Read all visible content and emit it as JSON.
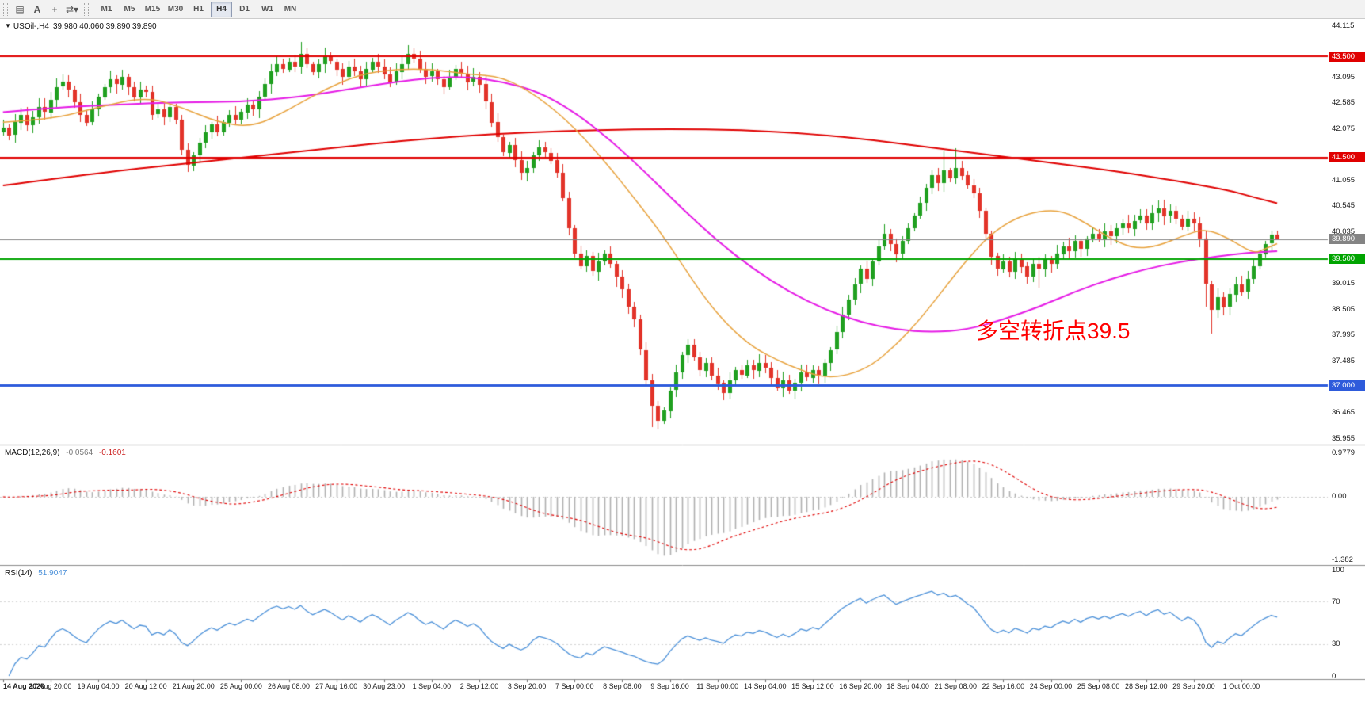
{
  "toolbar": {
    "tools": [
      {
        "name": "chart-window-icon",
        "glyph": "▤"
      },
      {
        "name": "text-annotation-icon",
        "glyph": "A"
      },
      {
        "name": "crosshair-icon",
        "glyph": "+"
      },
      {
        "name": "cycle-symbols-icon",
        "glyph": "⇄",
        "caret": "▾"
      }
    ],
    "timeframes": [
      "M1",
      "M5",
      "M15",
      "M30",
      "H1",
      "H4",
      "D1",
      "W1",
      "MN"
    ],
    "active_timeframe": "H4"
  },
  "main_header": {
    "collapse_icon": "▼",
    "title": "USOil-,H4",
    "ohlc": "39.980 40.060 39.890 39.890"
  },
  "macd_header": {
    "label": "MACD(12,26,9)",
    "value_main": "-0.0564",
    "value_signal": "-0.1601"
  },
  "rsi_header": {
    "label": "RSI(14)",
    "value": "51.9047"
  },
  "annotation": {
    "text": "多空转折点39.5",
    "color": "#ff0000"
  },
  "chart_data": {
    "type": "candlestick",
    "symbol": "USOil-",
    "timeframe": "H4",
    "title": "USOil-,H4",
    "ylim": [
      35.955,
      44.115
    ],
    "price_ticks": [
      "44.115",
      "43.095",
      "42.585",
      "42.075",
      "41.055",
      "40.545",
      "40.035",
      "39.015",
      "38.505",
      "37.995",
      "37.485",
      "36.465",
      "35.955"
    ],
    "up_color": "#20a020",
    "down_color": "#e23329",
    "open_first": 42.0,
    "closes": [
      42.1,
      41.95,
      42.2,
      42.35,
      42.15,
      42.3,
      42.5,
      42.4,
      42.65,
      42.9,
      43.0,
      42.85,
      42.6,
      42.35,
      42.2,
      42.45,
      42.7,
      42.9,
      43.05,
      42.95,
      43.1,
      42.9,
      42.7,
      42.85,
      42.8,
      42.35,
      42.45,
      42.3,
      42.5,
      42.25,
      41.65,
      41.35,
      41.55,
      41.8,
      42.0,
      42.15,
      42.0,
      42.2,
      42.35,
      42.25,
      42.4,
      42.55,
      42.45,
      42.7,
      42.95,
      43.2,
      43.35,
      43.25,
      43.4,
      43.3,
      43.55,
      43.35,
      43.2,
      43.35,
      43.5,
      43.4,
      43.25,
      43.1,
      43.3,
      43.2,
      43.05,
      43.25,
      43.4,
      43.3,
      43.15,
      43.0,
      43.2,
      43.35,
      43.55,
      43.45,
      43.25,
      43.1,
      43.2,
      43.05,
      42.9,
      43.1,
      43.25,
      43.15,
      43.0,
      43.1,
      42.95,
      42.6,
      42.2,
      41.9,
      41.6,
      41.75,
      41.45,
      41.2,
      41.3,
      41.55,
      41.7,
      41.6,
      41.45,
      41.2,
      40.7,
      40.1,
      39.6,
      39.35,
      39.55,
      39.25,
      39.45,
      39.6,
      39.4,
      39.15,
      38.9,
      38.55,
      38.3,
      37.7,
      37.1,
      36.6,
      36.3,
      36.5,
      36.9,
      37.25,
      37.6,
      37.8,
      37.55,
      37.3,
      37.45,
      37.2,
      37.05,
      36.85,
      37.1,
      37.3,
      37.2,
      37.4,
      37.3,
      37.45,
      37.35,
      37.15,
      36.95,
      37.1,
      36.9,
      37.05,
      37.25,
      37.15,
      37.3,
      37.2,
      37.45,
      37.7,
      38.05,
      38.4,
      38.7,
      39.0,
      39.3,
      39.1,
      39.45,
      39.75,
      40.0,
      39.8,
      39.6,
      39.85,
      40.1,
      40.35,
      40.6,
      40.9,
      41.15,
      41.0,
      41.25,
      41.1,
      41.3,
      41.15,
      40.95,
      40.8,
      40.45,
      40.0,
      39.55,
      39.3,
      39.45,
      39.25,
      39.5,
      39.35,
      39.15,
      39.4,
      39.3,
      39.5,
      39.4,
      39.6,
      39.75,
      39.65,
      39.85,
      39.7,
      39.9,
      40.0,
      39.9,
      40.05,
      39.95,
      40.1,
      40.2,
      40.1,
      40.25,
      40.35,
      40.2,
      40.4,
      40.5,
      40.35,
      40.45,
      40.3,
      40.15,
      40.3,
      40.2,
      39.9,
      39.0,
      38.5,
      38.75,
      38.55,
      38.8,
      39.0,
      38.85,
      39.1,
      39.35,
      39.6,
      39.8,
      39.98,
      39.89
    ],
    "wick_overrides": {
      "31": {
        "l": 41.22
      },
      "50": {
        "h": 43.78
      },
      "68": {
        "h": 43.72
      },
      "103": {
        "l": 38.95
      },
      "109": {
        "l": 36.18
      },
      "110": {
        "l": 36.12
      },
      "115": {
        "h": 37.92
      },
      "148": {
        "h": 40.18
      },
      "158": {
        "h": 41.62
      },
      "160": {
        "h": 41.68
      },
      "174": {
        "l": 38.93
      },
      "194": {
        "h": 40.65
      },
      "202": {
        "l": 38.55
      },
      "203": {
        "l": 38.02
      },
      "214": {
        "h": 40.06,
        "l": 39.87
      }
    },
    "right_shift_bars": 8,
    "levels": [
      {
        "price": 43.5,
        "label": "43.500",
        "color": "#e00000",
        "width": 2,
        "role": "resistance"
      },
      {
        "price": 41.5,
        "label": "41.500",
        "color": "#e00000",
        "width": 3,
        "role": "resistance"
      },
      {
        "price": 39.89,
        "label": "39.890",
        "color": "#848484",
        "width": 1,
        "role": "bid"
      },
      {
        "price": 39.5,
        "label": "39.500",
        "color": "#00a400",
        "width": 2,
        "role": "pivot"
      },
      {
        "price": 37.0,
        "label": "37.000",
        "color": "#2e5bdb",
        "width": 3,
        "role": "support"
      }
    ],
    "moving_averages": [
      {
        "name": "ma-slow",
        "color": "#e00000",
        "width": 2,
        "points": [
          [
            0,
            40.95
          ],
          [
            16,
            41.2
          ],
          [
            32,
            41.4
          ],
          [
            48,
            41.6
          ],
          [
            64,
            41.8
          ],
          [
            76,
            41.92
          ],
          [
            88,
            42.0
          ],
          [
            100,
            42.05
          ],
          [
            112,
            42.07
          ],
          [
            124,
            42.05
          ],
          [
            136,
            41.97
          ],
          [
            146,
            41.85
          ],
          [
            156,
            41.7
          ],
          [
            166,
            41.55
          ],
          [
            176,
            41.4
          ],
          [
            186,
            41.25
          ],
          [
            194,
            41.1
          ],
          [
            200,
            40.98
          ],
          [
            206,
            40.85
          ],
          [
            210,
            40.72
          ],
          [
            214,
            40.6
          ]
        ]
      },
      {
        "name": "ma-mid",
        "color": "#e61ae6",
        "width": 2,
        "points": [
          [
            0,
            42.4
          ],
          [
            10,
            42.5
          ],
          [
            20,
            42.55
          ],
          [
            30,
            42.6
          ],
          [
            40,
            42.6
          ],
          [
            50,
            42.7
          ],
          [
            58,
            42.85
          ],
          [
            66,
            43.0
          ],
          [
            72,
            43.08
          ],
          [
            78,
            43.1
          ],
          [
            84,
            43.0
          ],
          [
            90,
            42.8
          ],
          [
            96,
            42.4
          ],
          [
            102,
            41.85
          ],
          [
            108,
            41.2
          ],
          [
            114,
            40.5
          ],
          [
            120,
            39.85
          ],
          [
            126,
            39.3
          ],
          [
            132,
            38.85
          ],
          [
            138,
            38.5
          ],
          [
            144,
            38.25
          ],
          [
            150,
            38.1
          ],
          [
            156,
            38.05
          ],
          [
            162,
            38.1
          ],
          [
            168,
            38.3
          ],
          [
            174,
            38.55
          ],
          [
            180,
            38.85
          ],
          [
            186,
            39.1
          ],
          [
            192,
            39.3
          ],
          [
            198,
            39.45
          ],
          [
            204,
            39.55
          ],
          [
            209,
            39.62
          ],
          [
            214,
            39.65
          ]
        ]
      },
      {
        "name": "ma-fast",
        "color": "#e8a23c",
        "width": 1.5,
        "points": [
          [
            0,
            42.2
          ],
          [
            8,
            42.25
          ],
          [
            16,
            42.5
          ],
          [
            24,
            42.7
          ],
          [
            30,
            42.5
          ],
          [
            36,
            42.2
          ],
          [
            42,
            42.1
          ],
          [
            48,
            42.45
          ],
          [
            54,
            42.85
          ],
          [
            60,
            43.15
          ],
          [
            66,
            43.25
          ],
          [
            72,
            43.25
          ],
          [
            78,
            43.15
          ],
          [
            84,
            43.1
          ],
          [
            90,
            42.7
          ],
          [
            96,
            42.1
          ],
          [
            102,
            41.3
          ],
          [
            106,
            40.7
          ],
          [
            110,
            40.1
          ],
          [
            114,
            39.4
          ],
          [
            118,
            38.7
          ],
          [
            122,
            38.15
          ],
          [
            126,
            37.75
          ],
          [
            130,
            37.5
          ],
          [
            134,
            37.3
          ],
          [
            138,
            37.15
          ],
          [
            142,
            37.2
          ],
          [
            146,
            37.4
          ],
          [
            150,
            37.8
          ],
          [
            154,
            38.3
          ],
          [
            158,
            38.9
          ],
          [
            162,
            39.5
          ],
          [
            166,
            40.0
          ],
          [
            170,
            40.3
          ],
          [
            174,
            40.45
          ],
          [
            178,
            40.45
          ],
          [
            182,
            40.2
          ],
          [
            186,
            39.9
          ],
          [
            190,
            39.7
          ],
          [
            194,
            39.75
          ],
          [
            198,
            39.95
          ],
          [
            202,
            40.1
          ],
          [
            206,
            39.9
          ],
          [
            210,
            39.6
          ],
          [
            212,
            39.7
          ],
          [
            214,
            39.8
          ]
        ]
      }
    ],
    "x_labels": [
      "14 Aug 2020",
      "17 Aug 20:00",
      "19 Aug 04:00",
      "20 Aug 12:00",
      "21 Aug 20:00",
      "25 Aug 00:00",
      "26 Aug 08:00",
      "27 Aug 16:00",
      "30 Aug 23:00",
      "1 Sep 04:00",
      "2 Sep 12:00",
      "3 Sep 20:00",
      "7 Sep 00:00",
      "8 Sep 08:00",
      "9 Sep 16:00",
      "11 Sep 00:00",
      "14 Sep 04:00",
      "15 Sep 12:00",
      "16 Sep 20:00",
      "18 Sep 04:00",
      "21 Sep 08:00",
      "22 Sep 16:00",
      "24 Sep 00:00",
      "25 Sep 08:00",
      "28 Sep 12:00",
      "29 Sep 20:00",
      "1 Oct 00:00"
    ],
    "bars_per_label": 8,
    "macd": {
      "params": [
        12,
        26,
        9
      ],
      "hist_color": "#b0b0b0",
      "signal_color": "#e00000",
      "axis_labels": [
        "0.9779",
        "0.00",
        "-1.382"
      ],
      "axis_values": [
        0.9779,
        0,
        -1.382
      ]
    },
    "rsi": {
      "period": 14,
      "color": "#4a90d9",
      "levels": [
        70,
        30
      ],
      "axis_labels": [
        "100",
        "70",
        "30",
        "0"
      ],
      "axis_values": [
        100,
        70,
        30,
        0
      ]
    }
  }
}
